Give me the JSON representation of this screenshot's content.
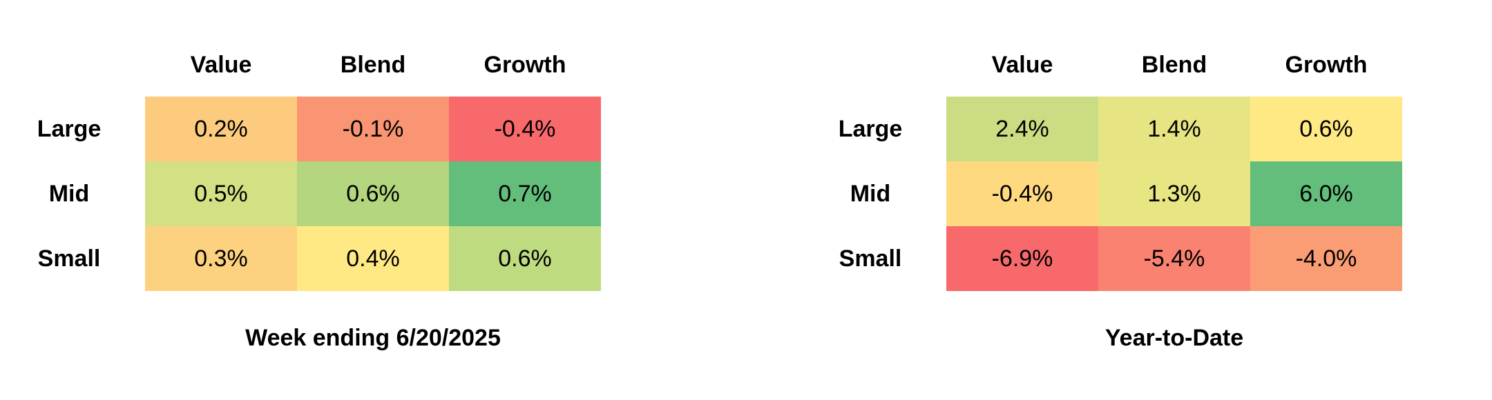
{
  "chart_data": [
    {
      "type": "heatmap",
      "title": "Week ending 6/20/2025",
      "columns": [
        "Value",
        "Blend",
        "Growth"
      ],
      "rows": [
        "Large",
        "Mid",
        "Small"
      ],
      "values": [
        [
          0.2,
          -0.1,
          -0.4
        ],
        [
          0.5,
          0.6,
          0.7
        ],
        [
          0.3,
          0.4,
          0.6
        ]
      ],
      "labels": [
        [
          "0.2%",
          "-0.1%",
          "-0.4%"
        ],
        [
          "0.5%",
          "0.6%",
          "0.7%"
        ],
        [
          "0.3%",
          "0.4%",
          "0.6%"
        ]
      ],
      "colors": [
        [
          "#fccb7d",
          "#fa9574",
          "#f8696b"
        ],
        [
          "#d3e084",
          "#b4d67f",
          "#63be7b"
        ],
        [
          "#fcd17f",
          "#ffe984",
          "#bedb80"
        ]
      ]
    },
    {
      "type": "heatmap",
      "title": "Year-to-Date",
      "columns": [
        "Value",
        "Blend",
        "Growth"
      ],
      "rows": [
        "Large",
        "Mid",
        "Small"
      ],
      "values": [
        [
          2.4,
          1.4,
          0.6
        ],
        [
          -0.4,
          1.3,
          6.0
        ],
        [
          -6.9,
          -5.4,
          -4.0
        ]
      ],
      "labels": [
        [
          "2.4%",
          "1.4%",
          "0.6%"
        ],
        [
          "-0.4%",
          "1.3%",
          "6.0%"
        ],
        [
          "-6.9%",
          "-5.4%",
          "-4.0%"
        ]
      ],
      "colors": [
        [
          "#cadd82",
          "#e6e483",
          "#ffe984"
        ],
        [
          "#fed980",
          "#e8e583",
          "#63be7b"
        ],
        [
          "#f8696b",
          "#f98370",
          "#fa9d75"
        ]
      ]
    }
  ]
}
